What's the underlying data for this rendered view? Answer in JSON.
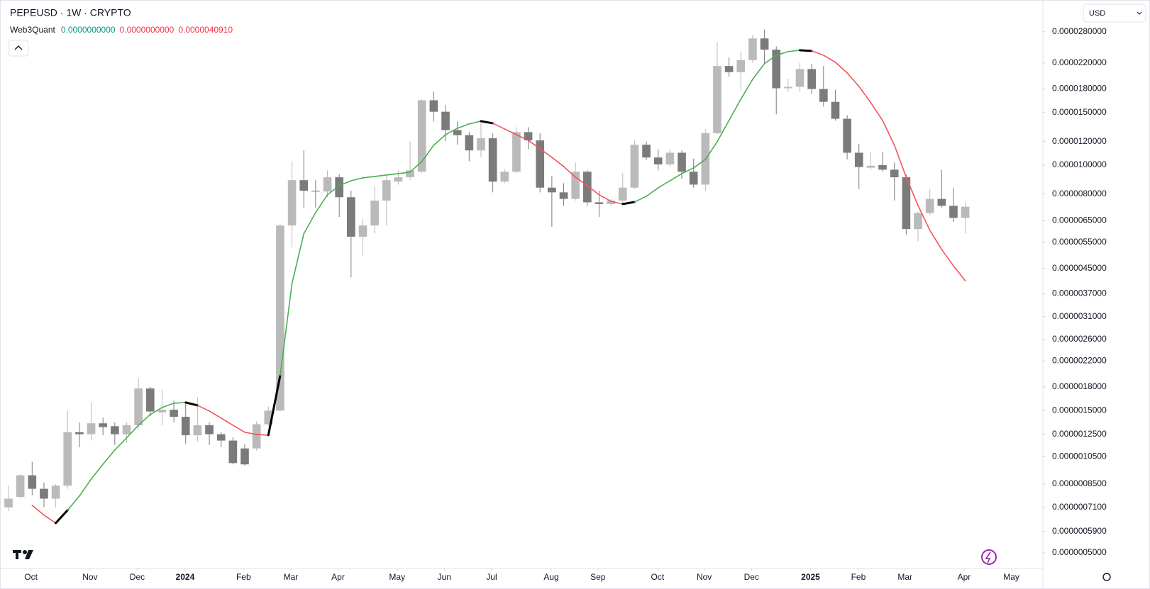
{
  "chart_data": {
    "type": "candlestick",
    "title": "PEPEUSD · 1W · CRYPTO",
    "currency": "USD",
    "categories": [
      null,
      null,
      null,
      null,
      null,
      null,
      null,
      null,
      null,
      null,
      null,
      null,
      null,
      null,
      null,
      null,
      null,
      null,
      null,
      null,
      null,
      null,
      null,
      null,
      null,
      null,
      null,
      null,
      null,
      null,
      null,
      null,
      null,
      null,
      null,
      null,
      null,
      null,
      null,
      null,
      null,
      null,
      null,
      null,
      null,
      null,
      null,
      null,
      null,
      null,
      null,
      null,
      null,
      null,
      null,
      null,
      null,
      null,
      null,
      null,
      null,
      null,
      null,
      null,
      null,
      null,
      null,
      null,
      null,
      null,
      null,
      null,
      null,
      null,
      null,
      null,
      null,
      null,
      null,
      null,
      null,
      null
    ],
    "open": [
      7.1e-07,
      7.7e-07,
      9.1e-07,
      8.2e-07,
      7.6e-07,
      8.4e-07,
      1.27e-06,
      1.25e-06,
      1.36e-06,
      1.33e-06,
      1.25e-06,
      1.34e-06,
      1.78e-06,
      1.48e-06,
      1.51e-06,
      1.43e-06,
      1.24e-06,
      1.34e-06,
      1.25e-06,
      1.19e-06,
      1.12e-06,
      1.12e-06,
      1.35e-06,
      1.5e-06,
      6.27e-06,
      8.9e-06,
      8.2e-06,
      8.15e-06,
      9.1e-06,
      7.8e-06,
      5.75e-06,
      6.27e-06,
      7.6e-06,
      8.8e-06,
      9.1e-06,
      9.5e-06,
      1.65e-05,
      1.51e-05,
      1.31e-05,
      1.26e-05,
      1.12e-05,
      1.23e-05,
      8.8e-06,
      9.5e-06,
      1.29e-05,
      1.21e-05,
      8.4e-06,
      8.1e-06,
      7.7e-06,
      9.5e-06,
      7.5e-06,
      7.4e-06,
      7.6e-06,
      8.4e-06,
      1.17e-05,
      1.06e-05,
      1.005e-05,
      1.1e-05,
      9.5e-06,
      8.6e-06,
      1.28e-05,
      2.15e-05,
      2.05e-05,
      2.25e-05,
      2.66e-05,
      2.44e-05,
      1.81e-05,
      1.83e-05,
      2.1e-05,
      1.8e-05,
      1.63e-05,
      1.43e-05,
      1.1e-05,
      9.8e-06,
      1e-05,
      9.65e-06,
      9.1e-06,
      6.1e-06,
      6.9e-06,
      7.7e-06,
      7.3e-06,
      6.65e-06
    ],
    "high": [
      8.4e-07,
      9.2e-07,
      1.01e-06,
      8.6e-07,
      8.5e-07,
      1.5e-06,
      1.37e-06,
      1.6e-06,
      1.42e-06,
      1.37e-06,
      1.37e-06,
      1.93e-06,
      1.8e-06,
      1.77e-06,
      1.62e-06,
      1.58e-06,
      1.66e-06,
      1.37e-06,
      1.27e-06,
      1.22e-06,
      1.16e-06,
      1.38e-06,
      1.55e-06,
      6.35e-06,
      1.03e-05,
      1.12e-05,
      8.9e-06,
      9.6e-06,
      9.3e-06,
      8.2e-06,
      6.6e-06,
      8.5e-06,
      9.3e-06,
      9.6e-06,
      1.2e-05,
      1.66e-05,
      1.77e-05,
      1.59e-05,
      1.4e-05,
      1.29e-05,
      1.4e-05,
      1.28e-05,
      9.7e-06,
      1.34e-05,
      1.34e-05,
      1.28e-05,
      9.2e-06,
      8.7e-06,
      1.02e-05,
      9.6e-06,
      8.2e-06,
      7.7e-06,
      9.4e-06,
      1.21e-05,
      1.2e-05,
      1.13e-05,
      1.13e-05,
      1.12e-05,
      1.05e-05,
      1.32e-05,
      2.58e-05,
      2.3e-05,
      2.4e-05,
      2.73e-05,
      2.85e-05,
      2.5e-05,
      1.95e-05,
      2.2e-05,
      2.19e-05,
      2.15e-05,
      1.79e-05,
      1.47e-05,
      1.18e-05,
      1.11e-05,
      1.11e-05,
      1.02e-05,
      9.3e-06,
      7e-06,
      8.3e-06,
      9.65e-06,
      8.4e-06,
      7.5e-06
    ],
    "low": [
      6.9e-07,
      7.6e-07,
      7.8e-07,
      7.1e-07,
      7.1e-07,
      8.2e-07,
      1.13e-06,
      1.19e-06,
      1.24e-06,
      1.15e-06,
      1.17e-06,
      1.3e-06,
      1.44e-06,
      1.34e-06,
      1.37e-06,
      1.16e-06,
      1.18e-06,
      1.15e-06,
      1.13e-06,
      9.9e-07,
      9.8e-07,
      1.1e-06,
      1.33e-06,
      1.49e-06,
      5.3e-06,
      7.2e-06,
      7.2e-06,
      7.8e-06,
      6.7e-06,
      4.2e-06,
      4.95e-06,
      5.9e-06,
      6.27e-06,
      8.6e-06,
      8.9e-06,
      9.4e-06,
      1.4e-05,
      1.2e-05,
      1.17e-05,
      1.03e-05,
      1.06e-05,
      8.1e-06,
      8.7e-06,
      9.4e-06,
      1.13e-05,
      8.1e-06,
      6.2e-06,
      7.3e-06,
      7.6e-06,
      7.3e-06,
      6.7e-06,
      7.3e-06,
      7.4e-06,
      8.3e-06,
      1.04e-05,
      9.6e-06,
      9.85e-06,
      9e-06,
      8.4e-06,
      8.2e-06,
      1.27e-05,
      1.98e-05,
      1.78e-05,
      2.2e-05,
      2.2e-05,
      1.48e-05,
      1.76e-05,
      1.76e-05,
      1.73e-05,
      1.57e-05,
      1.41e-05,
      1.045e-05,
      8.3e-06,
      9.65e-06,
      9.5e-06,
      7.6e-06,
      5.85e-06,
      5.55e-06,
      6.8e-06,
      7.2e-06,
      6.45e-06,
      5.9e-06
    ],
    "close": [
      7.6e-07,
      9.1e-07,
      8.2e-07,
      7.6e-07,
      8.4e-07,
      1.27e-06,
      1.25e-06,
      1.36e-06,
      1.32e-06,
      1.25e-06,
      1.34e-06,
      1.78e-06,
      1.49e-06,
      1.51e-06,
      1.43e-06,
      1.24e-06,
      1.34e-06,
      1.25e-06,
      1.19e-06,
      1e-06,
      9.9e-07,
      1.35e-06,
      1.5e-06,
      6.27e-06,
      8.9e-06,
      8.2e-06,
      8.15e-06,
      9.1e-06,
      7.8e-06,
      5.75e-06,
      6.27e-06,
      7.6e-06,
      8.9e-06,
      9.1e-06,
      9.6e-06,
      1.65e-05,
      1.51e-05,
      1.31e-05,
      1.26e-05,
      1.12e-05,
      1.23e-05,
      8.8e-06,
      9.5e-06,
      1.29e-05,
      1.21e-05,
      8.4e-06,
      8.1e-06,
      7.7e-06,
      9.5e-06,
      7.5e-06,
      7.4e-06,
      7.6e-06,
      8.4e-06,
      1.17e-05,
      1.06e-05,
      1.005e-05,
      1.1e-05,
      9.5e-06,
      8.6e-06,
      1.28e-05,
      2.15e-05,
      2.05e-05,
      2.25e-05,
      2.66e-05,
      2.44e-05,
      1.81e-05,
      1.83e-05,
      2.1e-05,
      1.8e-05,
      1.63e-05,
      1.43e-05,
      1.1e-05,
      9.85e-06,
      9.95e-06,
      9.65e-06,
      9.1e-06,
      6.1e-06,
      6.9e-06,
      7.7e-06,
      7.3e-06,
      6.65e-06,
      7.25e-06
    ],
    "up_color": "#bababa",
    "down_color": "#7b7b7b",
    "indicator": {
      "name": "Web3Quant",
      "up_color": "#4caf50",
      "down_color": "#f2545b",
      "turn_color": "#000000",
      "values": [
        null,
        null,
        7.22e-07,
        6.69e-07,
        6.29e-07,
        6.95e-07,
        7.75e-07,
        8.84e-07,
        9.92e-07,
        1.107e-06,
        1.215e-06,
        1.34e-06,
        1.455e-06,
        1.537e-06,
        1.588e-06,
        1.597e-06,
        1.562e-06,
        1.495e-06,
        1.416e-06,
        1.34e-06,
        1.269e-06,
        1.248e-06,
        1.241e-06,
        1.966e-06,
        4.007e-06,
        5.88e-06,
        6.93e-06,
        7.95e-06,
        8.53e-06,
        8.86e-06,
        9.06e-06,
        9.16e-06,
        9.26e-06,
        9.36e-06,
        9.47e-06,
        1.028e-05,
        1.166e-05,
        1.265e-05,
        1.329e-05,
        1.374e-05,
        1.404e-05,
        1.381e-05,
        1.322e-05,
        1.265e-05,
        1.211e-05,
        1.134e-05,
        1.062e-05,
        9.89e-06,
        9.11e-06,
        8.53e-06,
        7.95e-06,
        7.56e-06,
        7.4e-06,
        7.52e-06,
        7.86e-06,
        8.39e-06,
        8.86e-06,
        9.36e-06,
        9.78e-06,
        1.045e-05,
        1.198e-05,
        1.412e-05,
        1.664e-05,
        1.94e-05,
        2.19e-05,
        2.337e-05,
        2.402e-05,
        2.429e-05,
        2.415e-05,
        2.337e-05,
        2.214e-05,
        2.038e-05,
        1.837e-05,
        1.619e-05,
        1.412e-05,
        1.166e-05,
        9.11e-06,
        7.32e-06,
        6.04e-06,
        5.21e-06,
        4.59e-06,
        4.091e-06
      ],
      "legend_values": [
        0,
        0,
        4.091e-06
      ],
      "legend_value_labels": [
        "0.0000000000",
        "0.0000000000",
        "0.0000040910"
      ],
      "legend_colors": [
        "#089981",
        "#f23645",
        "#f23645"
      ]
    },
    "log_scale": true,
    "grid": false,
    "ylim": [
      4.48e-07,
      3.58e-05
    ],
    "yticks": [
      {
        "value": 2.8e-05,
        "label": "0.0000280000"
      },
      {
        "value": 2.2e-05,
        "label": "0.0000220000"
      },
      {
        "value": 1.8e-05,
        "label": "0.0000180000"
      },
      {
        "value": 1.5e-05,
        "label": "0.0000150000"
      },
      {
        "value": 1.2e-05,
        "label": "0.0000120000"
      },
      {
        "value": 1e-05,
        "label": "0.0000100000"
      },
      {
        "value": 8e-06,
        "label": "0.0000080000"
      },
      {
        "value": 6.5e-06,
        "label": "0.0000065000"
      },
      {
        "value": 5.5e-06,
        "label": "0.0000055000"
      },
      {
        "value": 4.5e-06,
        "label": "0.0000045000"
      },
      {
        "value": 3.7e-06,
        "label": "0.0000037000"
      },
      {
        "value": 3.1e-06,
        "label": "0.0000031000"
      },
      {
        "value": 2.6e-06,
        "label": "0.0000026000"
      },
      {
        "value": 2.2e-06,
        "label": "0.0000022000"
      },
      {
        "value": 1.8e-06,
        "label": "0.0000018000"
      },
      {
        "value": 1.5e-06,
        "label": "0.0000015000"
      },
      {
        "value": 1.25e-06,
        "label": "0.0000012500"
      },
      {
        "value": 1.05e-06,
        "label": "0.0000010500"
      },
      {
        "value": 8.5e-07,
        "label": "0.0000008500"
      },
      {
        "value": 7.1e-07,
        "label": "0.0000007100"
      },
      {
        "value": 5.9e-07,
        "label": "0.0000005900"
      },
      {
        "value": 5e-07,
        "label": "0.0000005000"
      }
    ],
    "xlim": [
      -0.42,
      87.45
    ],
    "xticks": [
      {
        "value": 1.9,
        "label": "Oct"
      },
      {
        "value": 6.9,
        "label": "Nov"
      },
      {
        "value": 10.9,
        "label": "Dec"
      },
      {
        "value": 14.95,
        "label": "2024"
      },
      {
        "value": 19.9,
        "label": "Feb"
      },
      {
        "value": 23.9,
        "label": "Mar"
      },
      {
        "value": 27.9,
        "label": "Apr"
      },
      {
        "value": 32.9,
        "label": "May"
      },
      {
        "value": 36.9,
        "label": "Jun"
      },
      {
        "value": 40.9,
        "label": "Jul"
      },
      {
        "value": 45.95,
        "label": "Aug"
      },
      {
        "value": 49.9,
        "label": "Sep"
      },
      {
        "value": 54.95,
        "label": "Oct"
      },
      {
        "value": 58.9,
        "label": "Nov"
      },
      {
        "value": 62.9,
        "label": "Dec"
      },
      {
        "value": 67.9,
        "label": "2025"
      },
      {
        "value": 71.95,
        "label": "Feb"
      },
      {
        "value": 75.9,
        "label": "Mar"
      },
      {
        "value": 80.9,
        "label": "Apr"
      },
      {
        "value": 84.9,
        "label": "May"
      }
    ]
  }
}
